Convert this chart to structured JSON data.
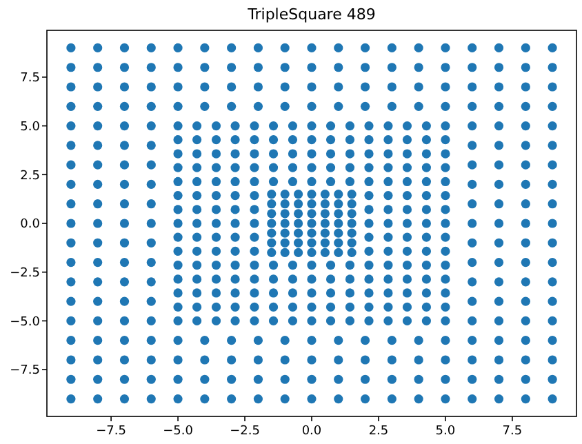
{
  "chart_data": {
    "type": "scatter",
    "title": "TripleSquare 489",
    "marker": "circle",
    "xlim": [
      -9.9,
      9.9
    ],
    "ylim": [
      -9.9,
      9.9
    ],
    "xticks": [
      {
        "value": -7.5,
        "label": "−7.5"
      },
      {
        "value": -5,
        "label": "−5.0"
      },
      {
        "value": -2.5,
        "label": "−2.5"
      },
      {
        "value": 0,
        "label": "0.0"
      },
      {
        "value": 2.5,
        "label": "2.5"
      },
      {
        "value": 5,
        "label": "5.0"
      },
      {
        "value": 7.5,
        "label": "7.5"
      }
    ],
    "yticks": [
      {
        "value": -7.5,
        "label": "−7.5"
      },
      {
        "value": -5,
        "label": "−5.0"
      },
      {
        "value": -2.5,
        "label": "−2.5"
      },
      {
        "value": 0,
        "label": "0.0"
      },
      {
        "value": 2.5,
        "label": "2.5"
      },
      {
        "value": 5,
        "label": "5.0"
      },
      {
        "value": 7.5,
        "label": "7.5"
      }
    ],
    "series": [
      {
        "color": "#1f77b4",
        "x": [
          -9,
          -8,
          -7,
          -6,
          -5,
          -4,
          -3,
          -2,
          -1,
          0,
          1,
          2,
          3,
          4,
          5,
          6,
          7,
          8,
          9,
          -9,
          -8,
          -7,
          -6,
          -5,
          -4,
          -3,
          -2,
          -1,
          0,
          1,
          2,
          3,
          4,
          5,
          6,
          7,
          8,
          9,
          -9,
          -8,
          -7,
          -6,
          -5,
          -4,
          -3,
          -2,
          -1,
          0,
          1,
          2,
          3,
          4,
          5,
          6,
          7,
          8,
          9,
          -9,
          -8,
          -7,
          -6,
          -5,
          -4,
          -3,
          -2,
          -1,
          0,
          1,
          2,
          3,
          4,
          5,
          6,
          7,
          8,
          9,
          -9,
          -8,
          -7,
          -6,
          6,
          7,
          8,
          9,
          -9,
          -8,
          -7,
          -6,
          6,
          7,
          8,
          9,
          -9,
          -8,
          -7,
          -6,
          6,
          7,
          8,
          9,
          -9,
          -8,
          -7,
          -6,
          6,
          7,
          8,
          9,
          -9,
          -8,
          -7,
          -6,
          6,
          7,
          8,
          9,
          -9,
          -8,
          -7,
          -6,
          6,
          7,
          8,
          9,
          -9,
          -8,
          -7,
          -6,
          6,
          7,
          8,
          9,
          -9,
          -8,
          -7,
          -6,
          6,
          7,
          8,
          9,
          -9,
          -8,
          -7,
          -6,
          6,
          7,
          8,
          9,
          -9,
          -8,
          -7,
          -6,
          6,
          7,
          8,
          9,
          -9,
          -8,
          -7,
          -6,
          6,
          7,
          8,
          9,
          -9,
          -8,
          -7,
          -6,
          -5,
          -4,
          -3,
          -2,
          -1,
          0,
          1,
          2,
          3,
          4,
          5,
          6,
          7,
          8,
          9,
          -9,
          -8,
          -7,
          -6,
          -5,
          -4,
          -3,
          -2,
          -1,
          0,
          1,
          2,
          3,
          4,
          5,
          6,
          7,
          8,
          9,
          -9,
          -8,
          -7,
          -6,
          -5,
          -4,
          -3,
          -2,
          -1,
          0,
          1,
          2,
          3,
          4,
          5,
          6,
          7,
          8,
          9,
          -9,
          -8,
          -7,
          -6,
          -5,
          -4,
          -3,
          -2,
          -1,
          0,
          1,
          2,
          3,
          4,
          5,
          6,
          7,
          8,
          9
        ],
        "values": [
          -9,
          -9,
          -9,
          -9,
          -9,
          -9,
          -9,
          -9,
          -9,
          -9,
          -9,
          -9,
          -9,
          -9,
          -9,
          -9,
          -9,
          -9,
          -9,
          -8,
          -8,
          -8,
          -8,
          -8,
          -8,
          -8,
          -8,
          -8,
          -8,
          -8,
          -8,
          -8,
          -8,
          -8,
          -8,
          -8,
          -8,
          -8,
          -7,
          -7,
          -7,
          -7,
          -7,
          -7,
          -7,
          -7,
          -7,
          -7,
          -7,
          -7,
          -7,
          -7,
          -7,
          -7,
          -7,
          -7,
          -7,
          -6,
          -6,
          -6,
          -6,
          -6,
          -6,
          -6,
          -6,
          -6,
          -6,
          -6,
          -6,
          -6,
          -6,
          -6,
          -6,
          -6,
          -6,
          -6,
          -5,
          -5,
          -5,
          -5,
          -5,
          -5,
          -5,
          -5,
          -4,
          -4,
          -4,
          -4,
          -4,
          -4,
          -4,
          -4,
          -3,
          -3,
          -3,
          -3,
          -3,
          -3,
          -3,
          -3,
          -2,
          -2,
          -2,
          -2,
          -2,
          -2,
          -2,
          -2,
          -1,
          -1,
          -1,
          -1,
          -1,
          -1,
          -1,
          -1,
          0,
          0,
          0,
          0,
          0,
          0,
          0,
          0,
          1,
          1,
          1,
          1,
          1,
          1,
          1,
          1,
          2,
          2,
          2,
          2,
          2,
          2,
          2,
          2,
          3,
          3,
          3,
          3,
          3,
          3,
          3,
          3,
          4,
          4,
          4,
          4,
          4,
          4,
          4,
          4,
          5,
          5,
          5,
          5,
          5,
          5,
          5,
          5,
          6,
          6,
          6,
          6,
          6,
          6,
          6,
          6,
          6,
          6,
          6,
          6,
          6,
          6,
          6,
          6,
          6,
          6,
          6,
          7,
          7,
          7,
          7,
          7,
          7,
          7,
          7,
          7,
          7,
          7,
          7,
          7,
          7,
          7,
          7,
          7,
          7,
          7,
          8,
          8,
          8,
          8,
          8,
          8,
          8,
          8,
          8,
          8,
          8,
          8,
          8,
          8,
          8,
          8,
          8,
          8,
          8,
          9,
          9,
          9,
          9,
          9,
          9,
          9,
          9,
          9,
          9,
          9,
          9,
          9,
          9,
          9,
          9,
          9,
          9,
          9
        ]
      },
      {
        "color": "#1f77b4",
        "x": [
          -5,
          -4.29,
          -3.57,
          -2.86,
          -2.14,
          -1.43,
          -0.71,
          0,
          0.71,
          1.43,
          2.14,
          2.86,
          3.57,
          4.29,
          5,
          -5,
          -4.29,
          -3.57,
          -2.86,
          -2.14,
          -1.43,
          -0.71,
          0,
          0.71,
          1.43,
          2.14,
          2.86,
          3.57,
          4.29,
          5,
          -5,
          -4.29,
          -3.57,
          -2.86,
          -2.14,
          -1.43,
          -0.71,
          0,
          0.71,
          1.43,
          2.14,
          2.86,
          3.57,
          4.29,
          5,
          -5,
          -4.29,
          -3.57,
          -2.86,
          -2.14,
          -1.43,
          -0.71,
          0,
          0.71,
          1.43,
          2.14,
          2.86,
          3.57,
          4.29,
          5,
          -5,
          -4.29,
          -3.57,
          -2.86,
          -2.14,
          -1.43,
          -0.71,
          0,
          0.71,
          1.43,
          2.14,
          2.86,
          3.57,
          4.29,
          5,
          -5,
          -4.29,
          -3.57,
          -2.86,
          -2.14,
          2.14,
          2.86,
          3.57,
          4.29,
          5,
          -5,
          -4.29,
          -3.57,
          -2.86,
          -2.14,
          2.14,
          2.86,
          3.57,
          4.29,
          5,
          -5,
          -4.29,
          -3.57,
          -2.86,
          -2.14,
          2.14,
          2.86,
          3.57,
          4.29,
          5,
          -5,
          -4.29,
          -3.57,
          -2.86,
          -2.14,
          2.14,
          2.86,
          3.57,
          4.29,
          5,
          -5,
          -4.29,
          -3.57,
          -2.86,
          -2.14,
          2.14,
          2.86,
          3.57,
          4.29,
          5,
          -5,
          -4.29,
          -3.57,
          -2.86,
          -2.14,
          -1.43,
          -0.71,
          0,
          0.71,
          1.43,
          2.14,
          2.86,
          3.57,
          4.29,
          5,
          -5,
          -4.29,
          -3.57,
          -2.86,
          -2.14,
          -1.43,
          -0.71,
          0,
          0.71,
          1.43,
          2.14,
          2.86,
          3.57,
          4.29,
          5,
          -5,
          -4.29,
          -3.57,
          -2.86,
          -2.14,
          -1.43,
          -0.71,
          0,
          0.71,
          1.43,
          2.14,
          2.86,
          3.57,
          4.29,
          5,
          -5,
          -4.29,
          -3.57,
          -2.86,
          -2.14,
          -1.43,
          -0.71,
          0,
          0.71,
          1.43,
          2.14,
          2.86,
          3.57,
          4.29,
          5,
          -5,
          -4.29,
          -3.57,
          -2.86,
          -2.14,
          -1.43,
          -0.71,
          0,
          0.71,
          1.43,
          2.14,
          2.86,
          3.57,
          4.29,
          5
        ],
        "values": [
          -5,
          -5,
          -5,
          -5,
          -5,
          -5,
          -5,
          -5,
          -5,
          -5,
          -5,
          -5,
          -5,
          -5,
          -5,
          -4.29,
          -4.29,
          -4.29,
          -4.29,
          -4.29,
          -4.29,
          -4.29,
          -4.29,
          -4.29,
          -4.29,
          -4.29,
          -4.29,
          -4.29,
          -4.29,
          -4.29,
          -3.57,
          -3.57,
          -3.57,
          -3.57,
          -3.57,
          -3.57,
          -3.57,
          -3.57,
          -3.57,
          -3.57,
          -3.57,
          -3.57,
          -3.57,
          -3.57,
          -3.57,
          -2.86,
          -2.86,
          -2.86,
          -2.86,
          -2.86,
          -2.86,
          -2.86,
          -2.86,
          -2.86,
          -2.86,
          -2.86,
          -2.86,
          -2.86,
          -2.86,
          -2.86,
          -2.14,
          -2.14,
          -2.14,
          -2.14,
          -2.14,
          -2.14,
          -2.14,
          -2.14,
          -2.14,
          -2.14,
          -2.14,
          -2.14,
          -2.14,
          -2.14,
          -2.14,
          -1.43,
          -1.43,
          -1.43,
          -1.43,
          -1.43,
          -1.43,
          -1.43,
          -1.43,
          -1.43,
          -1.43,
          -0.71,
          -0.71,
          -0.71,
          -0.71,
          -0.71,
          -0.71,
          -0.71,
          -0.71,
          -0.71,
          -0.71,
          0,
          0,
          0,
          0,
          0,
          0,
          0,
          0,
          0,
          0,
          0.71,
          0.71,
          0.71,
          0.71,
          0.71,
          0.71,
          0.71,
          0.71,
          0.71,
          0.71,
          1.43,
          1.43,
          1.43,
          1.43,
          1.43,
          1.43,
          1.43,
          1.43,
          1.43,
          1.43,
          2.14,
          2.14,
          2.14,
          2.14,
          2.14,
          2.14,
          2.14,
          2.14,
          2.14,
          2.14,
          2.14,
          2.14,
          2.14,
          2.14,
          2.14,
          2.86,
          2.86,
          2.86,
          2.86,
          2.86,
          2.86,
          2.86,
          2.86,
          2.86,
          2.86,
          2.86,
          2.86,
          2.86,
          2.86,
          2.86,
          3.57,
          3.57,
          3.57,
          3.57,
          3.57,
          3.57,
          3.57,
          3.57,
          3.57,
          3.57,
          3.57,
          3.57,
          3.57,
          3.57,
          3.57,
          4.29,
          4.29,
          4.29,
          4.29,
          4.29,
          4.29,
          4.29,
          4.29,
          4.29,
          4.29,
          4.29,
          4.29,
          4.29,
          4.29,
          4.29,
          5,
          5,
          5,
          5,
          5,
          5,
          5,
          5,
          5,
          5,
          5,
          5,
          5,
          5,
          5
        ]
      },
      {
        "color": "#1f77b4",
        "x": [
          -1.5,
          -1,
          -0.5,
          0,
          0.5,
          1,
          1.5,
          -1.5,
          -1,
          -0.5,
          0,
          0.5,
          1,
          1.5,
          -1.5,
          -1,
          -0.5,
          0,
          0.5,
          1,
          1.5,
          -1.5,
          -1,
          -0.5,
          0,
          0.5,
          1,
          1.5,
          -1.5,
          -1,
          -0.5,
          0,
          0.5,
          1,
          1.5,
          -1.5,
          -1,
          -0.5,
          0,
          0.5,
          1,
          1.5,
          -1.5,
          -1,
          -0.5,
          0,
          0.5,
          1,
          1.5
        ],
        "values": [
          -1.5,
          -1.5,
          -1.5,
          -1.5,
          -1.5,
          -1.5,
          -1.5,
          -1,
          -1,
          -1,
          -1,
          -1,
          -1,
          -1,
          -0.5,
          -0.5,
          -0.5,
          -0.5,
          -0.5,
          -0.5,
          -0.5,
          0,
          0,
          0,
          0,
          0,
          0,
          0,
          0.5,
          0.5,
          0.5,
          0.5,
          0.5,
          0.5,
          0.5,
          1,
          1,
          1,
          1,
          1,
          1,
          1,
          1.5,
          1.5,
          1.5,
          1.5,
          1.5,
          1.5,
          1.5
        ]
      }
    ]
  }
}
